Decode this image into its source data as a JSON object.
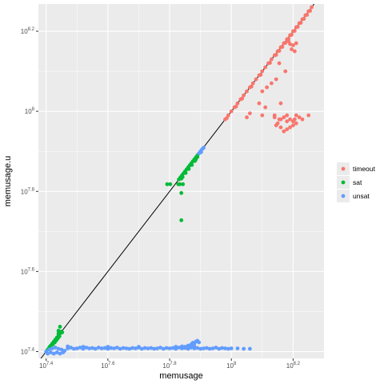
{
  "chart_data": {
    "type": "scatter",
    "xlabel": "memusage",
    "ylabel": "memusage.u",
    "scale": "log10",
    "xlim_log10": [
      7.375,
      8.3
    ],
    "ylim_log10": [
      7.383,
      8.268
    ],
    "x_ticks": [
      {
        "base": "10",
        "exp": "7.4"
      },
      {
        "base": "10",
        "exp": "7.6"
      },
      {
        "base": "10",
        "exp": "7.8"
      },
      {
        "base": "10",
        "exp": "8"
      },
      {
        "base": "10",
        "exp": "8.2"
      }
    ],
    "y_ticks": [
      {
        "base": "10",
        "exp": "7.4"
      },
      {
        "base": "10",
        "exp": "7.6"
      },
      {
        "base": "10",
        "exp": "7.8"
      },
      {
        "base": "10",
        "exp": "8"
      },
      {
        "base": "10",
        "exp": "8.2"
      }
    ],
    "grid": true,
    "reference_line": "y = x",
    "legend_position": "right",
    "series": [
      {
        "name": "timeout",
        "color": "#F8766D",
        "points_log10": [
          [
            7.98,
            7.98
          ],
          [
            7.99,
            7.99
          ],
          [
            8.0,
            8.0
          ],
          [
            8.01,
            8.01
          ],
          [
            8.02,
            8.02
          ],
          [
            8.03,
            8.03
          ],
          [
            8.04,
            8.04
          ],
          [
            8.05,
            8.05
          ],
          [
            8.06,
            8.06
          ],
          [
            8.07,
            8.07
          ],
          [
            8.08,
            8.08
          ],
          [
            8.09,
            8.09
          ],
          [
            8.1,
            8.1
          ],
          [
            8.11,
            8.11
          ],
          [
            8.12,
            8.12
          ],
          [
            8.13,
            8.13
          ],
          [
            8.14,
            8.14
          ],
          [
            8.15,
            8.15
          ],
          [
            8.16,
            8.16
          ],
          [
            8.17,
            8.17
          ],
          [
            8.18,
            8.18
          ],
          [
            8.19,
            8.19
          ],
          [
            8.2,
            8.2
          ],
          [
            8.21,
            8.21
          ],
          [
            8.22,
            8.22
          ],
          [
            8.23,
            8.23
          ],
          [
            8.24,
            8.24
          ],
          [
            8.25,
            8.25
          ],
          [
            8.26,
            8.26
          ],
          [
            8.175,
            8.171
          ],
          [
            8.185,
            8.181
          ],
          [
            8.195,
            8.191
          ],
          [
            8.205,
            8.201
          ],
          [
            8.215,
            8.211
          ],
          [
            8.225,
            8.221
          ],
          [
            7.985,
            7.983
          ],
          [
            8.015,
            8.012
          ],
          [
            8.035,
            8.032
          ],
          [
            8.065,
            8.062
          ],
          [
            8.095,
            8.091
          ],
          [
            8.125,
            8.121
          ],
          [
            8.145,
            8.141
          ],
          [
            8.155,
            8.151
          ],
          [
            8.165,
            8.161
          ],
          [
            8.235,
            8.231
          ],
          [
            8.245,
            8.241
          ],
          [
            8.255,
            8.251
          ],
          [
            8.2,
            8.165
          ],
          [
            8.205,
            8.15
          ],
          [
            8.21,
            8.17
          ],
          [
            8.195,
            8.155
          ],
          [
            8.185,
            8.175
          ],
          [
            8.19,
            8.168
          ],
          [
            8.155,
            8.12
          ],
          [
            8.175,
            8.1
          ],
          [
            8.145,
            8.08
          ],
          [
            8.13,
            8.07
          ],
          [
            8.1,
            8.05
          ],
          [
            8.115,
            8.06
          ],
          [
            8.09,
            8.02
          ],
          [
            8.06,
            7.995
          ],
          [
            8.05,
            7.985
          ],
          [
            8.1,
            7.99
          ],
          [
            8.11,
            8.01
          ],
          [
            8.16,
            8.02
          ],
          [
            8.14,
            7.99
          ],
          [
            8.15,
            7.97
          ],
          [
            8.16,
            7.98
          ],
          [
            8.17,
            7.985
          ],
          [
            8.18,
            7.99
          ],
          [
            8.19,
            7.98
          ],
          [
            8.2,
            7.975
          ],
          [
            8.21,
            7.99
          ],
          [
            8.22,
            7.985
          ],
          [
            8.2,
            7.965
          ],
          [
            8.21,
            7.97
          ],
          [
            8.19,
            7.96
          ],
          [
            8.18,
            7.955
          ],
          [
            8.17,
            7.95
          ],
          [
            8.16,
            7.96
          ],
          [
            8.14,
            7.985
          ],
          [
            8.145,
            7.965
          ],
          [
            8.25,
            7.99
          ],
          [
            8.23,
            7.98
          ],
          [
            8.18,
            7.975
          ],
          [
            8.155,
            7.98
          ],
          [
            8.205,
            7.98
          ]
        ]
      },
      {
        "name": "sat",
        "color": "#00BA38",
        "points_log10": [
          [
            7.405,
            7.405
          ],
          [
            7.41,
            7.41
          ],
          [
            7.415,
            7.415
          ],
          [
            7.42,
            7.42
          ],
          [
            7.425,
            7.425
          ],
          [
            7.43,
            7.43
          ],
          [
            7.435,
            7.435
          ],
          [
            7.44,
            7.44
          ],
          [
            7.445,
            7.445
          ],
          [
            7.45,
            7.45
          ],
          [
            7.428,
            7.423
          ],
          [
            7.433,
            7.428
          ],
          [
            7.438,
            7.433
          ],
          [
            7.443,
            7.438
          ],
          [
            7.44,
            7.452
          ],
          [
            7.445,
            7.462
          ],
          [
            7.44,
            7.445
          ],
          [
            7.422,
            7.418
          ],
          [
            7.412,
            7.412
          ],
          [
            7.452,
            7.448
          ],
          [
            7.83,
            7.83
          ],
          [
            7.835,
            7.835
          ],
          [
            7.84,
            7.84
          ],
          [
            7.845,
            7.845
          ],
          [
            7.85,
            7.85
          ],
          [
            7.855,
            7.855
          ],
          [
            7.86,
            7.86
          ],
          [
            7.865,
            7.865
          ],
          [
            7.87,
            7.87
          ],
          [
            7.875,
            7.875
          ],
          [
            7.88,
            7.88
          ],
          [
            7.885,
            7.885
          ],
          [
            7.89,
            7.89
          ],
          [
            7.895,
            7.895
          ],
          [
            7.838,
            7.832
          ],
          [
            7.842,
            7.836
          ],
          [
            7.852,
            7.846
          ],
          [
            7.862,
            7.856
          ],
          [
            7.872,
            7.866
          ],
          [
            7.882,
            7.876
          ],
          [
            7.792,
            7.818
          ],
          [
            7.802,
            7.818
          ],
          [
            7.828,
            7.818
          ],
          [
            7.833,
            7.818
          ],
          [
            7.843,
            7.818
          ],
          [
            7.838,
            7.796
          ],
          [
            7.838,
            7.728
          ],
          [
            7.89,
            7.886
          ],
          [
            7.885,
            7.88
          ]
        ]
      },
      {
        "name": "unsat",
        "color": "#619CFF",
        "points_log10": [
          [
            7.9,
            7.9
          ],
          [
            7.905,
            7.905
          ],
          [
            7.895,
            7.895
          ],
          [
            7.91,
            7.909
          ],
          [
            7.902,
            7.898
          ],
          [
            7.4,
            7.4
          ],
          [
            7.41,
            7.405
          ],
          [
            7.42,
            7.408
          ],
          [
            7.43,
            7.41
          ],
          [
            7.44,
            7.407
          ],
          [
            7.45,
            7.405
          ],
          [
            7.405,
            7.395
          ],
          [
            7.415,
            7.398
          ],
          [
            7.425,
            7.395
          ],
          [
            7.435,
            7.398
          ],
          [
            7.445,
            7.395
          ],
          [
            7.455,
            7.398
          ],
          [
            7.46,
            7.402
          ],
          [
            7.47,
            7.408
          ],
          [
            7.48,
            7.41
          ],
          [
            7.49,
            7.407
          ],
          [
            7.5,
            7.408
          ],
          [
            7.51,
            7.41
          ],
          [
            7.52,
            7.407
          ],
          [
            7.53,
            7.41
          ],
          [
            7.54,
            7.408
          ],
          [
            7.55,
            7.409
          ],
          [
            7.56,
            7.407
          ],
          [
            7.57,
            7.41
          ],
          [
            7.58,
            7.408
          ],
          [
            7.59,
            7.409
          ],
          [
            7.6,
            7.407
          ],
          [
            7.61,
            7.409
          ],
          [
            7.62,
            7.408
          ],
          [
            7.63,
            7.41
          ],
          [
            7.64,
            7.407
          ],
          [
            7.65,
            7.409
          ],
          [
            7.66,
            7.408
          ],
          [
            7.67,
            7.407
          ],
          [
            7.68,
            7.409
          ],
          [
            7.69,
            7.408
          ],
          [
            7.7,
            7.41
          ],
          [
            7.71,
            7.407
          ],
          [
            7.72,
            7.409
          ],
          [
            7.73,
            7.408
          ],
          [
            7.74,
            7.409
          ],
          [
            7.75,
            7.407
          ],
          [
            7.76,
            7.408
          ],
          [
            7.77,
            7.41
          ],
          [
            7.78,
            7.407
          ],
          [
            7.79,
            7.409
          ],
          [
            7.8,
            7.408
          ],
          [
            7.81,
            7.409
          ],
          [
            7.82,
            7.407
          ],
          [
            7.83,
            7.41
          ],
          [
            7.84,
            7.408
          ],
          [
            7.85,
            7.409
          ],
          [
            7.86,
            7.407
          ],
          [
            7.87,
            7.41
          ],
          [
            7.88,
            7.408
          ],
          [
            7.89,
            7.409
          ],
          [
            7.9,
            7.407
          ],
          [
            7.91,
            7.408
          ],
          [
            7.92,
            7.409
          ],
          [
            7.93,
            7.407
          ],
          [
            7.94,
            7.408
          ],
          [
            7.95,
            7.41
          ],
          [
            7.96,
            7.407
          ],
          [
            7.97,
            7.409
          ],
          [
            7.98,
            7.408
          ],
          [
            7.99,
            7.407
          ],
          [
            8.0,
            7.408
          ],
          [
            8.02,
            7.408
          ],
          [
            8.04,
            7.407
          ],
          [
            8.06,
            7.407
          ],
          [
            7.85,
            7.412
          ],
          [
            7.86,
            7.415
          ],
          [
            7.87,
            7.418
          ],
          [
            7.875,
            7.422
          ],
          [
            7.88,
            7.42
          ],
          [
            7.885,
            7.425
          ],
          [
            7.89,
            7.427
          ],
          [
            7.895,
            7.423
          ],
          [
            7.88,
            7.413
          ],
          [
            7.87,
            7.412
          ],
          [
            7.84,
            7.413
          ],
          [
            7.82,
            7.412
          ],
          [
            7.7,
            7.412
          ],
          [
            7.6,
            7.412
          ],
          [
            7.52,
            7.412
          ],
          [
            7.47,
            7.413
          ]
        ]
      }
    ]
  }
}
